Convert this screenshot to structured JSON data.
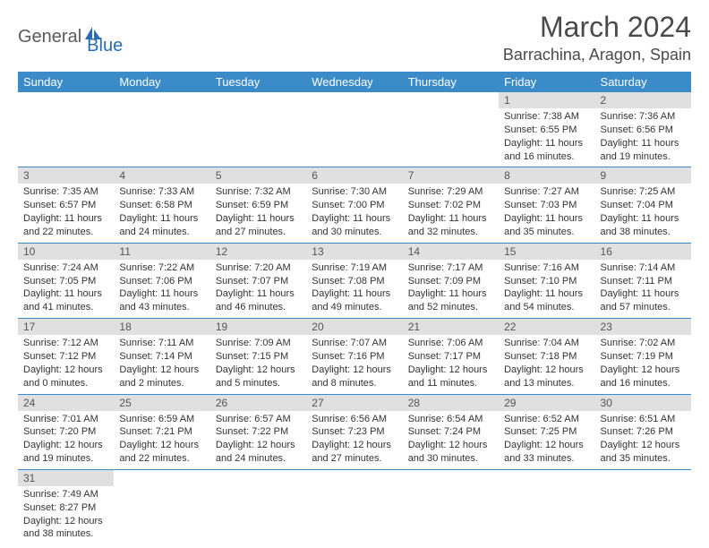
{
  "logo": {
    "part1": "General",
    "part2": "Blue"
  },
  "title": "March 2024",
  "location": "Barrachina, Aragon, Spain",
  "colors": {
    "header_bg": "#3b8bc9",
    "header_text": "#ffffff",
    "daynum_bg": "#e0e0e0",
    "row_border": "#3b8bc9",
    "logo_gray": "#5a5a5a",
    "logo_blue": "#2a6cb0"
  },
  "weekdays": [
    "Sunday",
    "Monday",
    "Tuesday",
    "Wednesday",
    "Thursday",
    "Friday",
    "Saturday"
  ],
  "weeks": [
    [
      null,
      null,
      null,
      null,
      null,
      {
        "n": "1",
        "sunrise": "7:38 AM",
        "sunset": "6:55 PM",
        "daylight": "11 hours and 16 minutes."
      },
      {
        "n": "2",
        "sunrise": "7:36 AM",
        "sunset": "6:56 PM",
        "daylight": "11 hours and 19 minutes."
      }
    ],
    [
      {
        "n": "3",
        "sunrise": "7:35 AM",
        "sunset": "6:57 PM",
        "daylight": "11 hours and 22 minutes."
      },
      {
        "n": "4",
        "sunrise": "7:33 AM",
        "sunset": "6:58 PM",
        "daylight": "11 hours and 24 minutes."
      },
      {
        "n": "5",
        "sunrise": "7:32 AM",
        "sunset": "6:59 PM",
        "daylight": "11 hours and 27 minutes."
      },
      {
        "n": "6",
        "sunrise": "7:30 AM",
        "sunset": "7:00 PM",
        "daylight": "11 hours and 30 minutes."
      },
      {
        "n": "7",
        "sunrise": "7:29 AM",
        "sunset": "7:02 PM",
        "daylight": "11 hours and 32 minutes."
      },
      {
        "n": "8",
        "sunrise": "7:27 AM",
        "sunset": "7:03 PM",
        "daylight": "11 hours and 35 minutes."
      },
      {
        "n": "9",
        "sunrise": "7:25 AM",
        "sunset": "7:04 PM",
        "daylight": "11 hours and 38 minutes."
      }
    ],
    [
      {
        "n": "10",
        "sunrise": "7:24 AM",
        "sunset": "7:05 PM",
        "daylight": "11 hours and 41 minutes."
      },
      {
        "n": "11",
        "sunrise": "7:22 AM",
        "sunset": "7:06 PM",
        "daylight": "11 hours and 43 minutes."
      },
      {
        "n": "12",
        "sunrise": "7:20 AM",
        "sunset": "7:07 PM",
        "daylight": "11 hours and 46 minutes."
      },
      {
        "n": "13",
        "sunrise": "7:19 AM",
        "sunset": "7:08 PM",
        "daylight": "11 hours and 49 minutes."
      },
      {
        "n": "14",
        "sunrise": "7:17 AM",
        "sunset": "7:09 PM",
        "daylight": "11 hours and 52 minutes."
      },
      {
        "n": "15",
        "sunrise": "7:16 AM",
        "sunset": "7:10 PM",
        "daylight": "11 hours and 54 minutes."
      },
      {
        "n": "16",
        "sunrise": "7:14 AM",
        "sunset": "7:11 PM",
        "daylight": "11 hours and 57 minutes."
      }
    ],
    [
      {
        "n": "17",
        "sunrise": "7:12 AM",
        "sunset": "7:12 PM",
        "daylight": "12 hours and 0 minutes."
      },
      {
        "n": "18",
        "sunrise": "7:11 AM",
        "sunset": "7:14 PM",
        "daylight": "12 hours and 2 minutes."
      },
      {
        "n": "19",
        "sunrise": "7:09 AM",
        "sunset": "7:15 PM",
        "daylight": "12 hours and 5 minutes."
      },
      {
        "n": "20",
        "sunrise": "7:07 AM",
        "sunset": "7:16 PM",
        "daylight": "12 hours and 8 minutes."
      },
      {
        "n": "21",
        "sunrise": "7:06 AM",
        "sunset": "7:17 PM",
        "daylight": "12 hours and 11 minutes."
      },
      {
        "n": "22",
        "sunrise": "7:04 AM",
        "sunset": "7:18 PM",
        "daylight": "12 hours and 13 minutes."
      },
      {
        "n": "23",
        "sunrise": "7:02 AM",
        "sunset": "7:19 PM",
        "daylight": "12 hours and 16 minutes."
      }
    ],
    [
      {
        "n": "24",
        "sunrise": "7:01 AM",
        "sunset": "7:20 PM",
        "daylight": "12 hours and 19 minutes."
      },
      {
        "n": "25",
        "sunrise": "6:59 AM",
        "sunset": "7:21 PM",
        "daylight": "12 hours and 22 minutes."
      },
      {
        "n": "26",
        "sunrise": "6:57 AM",
        "sunset": "7:22 PM",
        "daylight": "12 hours and 24 minutes."
      },
      {
        "n": "27",
        "sunrise": "6:56 AM",
        "sunset": "7:23 PM",
        "daylight": "12 hours and 27 minutes."
      },
      {
        "n": "28",
        "sunrise": "6:54 AM",
        "sunset": "7:24 PM",
        "daylight": "12 hours and 30 minutes."
      },
      {
        "n": "29",
        "sunrise": "6:52 AM",
        "sunset": "7:25 PM",
        "daylight": "12 hours and 33 minutes."
      },
      {
        "n": "30",
        "sunrise": "6:51 AM",
        "sunset": "7:26 PM",
        "daylight": "12 hours and 35 minutes."
      }
    ],
    [
      {
        "n": "31",
        "sunrise": "7:49 AM",
        "sunset": "8:27 PM",
        "daylight": "12 hours and 38 minutes."
      },
      null,
      null,
      null,
      null,
      null,
      null
    ]
  ],
  "labels": {
    "sunrise": "Sunrise:",
    "sunset": "Sunset:",
    "daylight": "Daylight:"
  }
}
